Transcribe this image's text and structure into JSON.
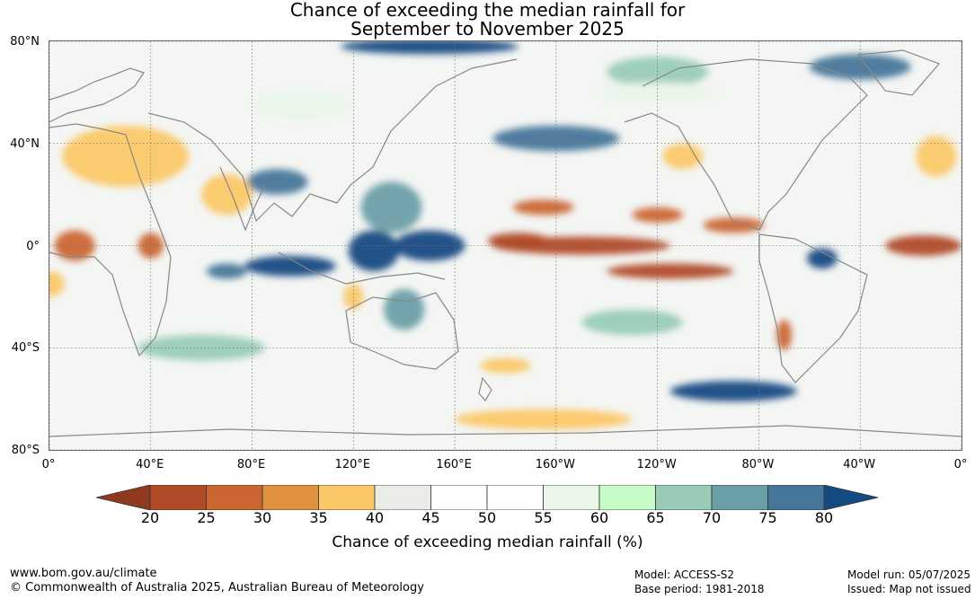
{
  "title": {
    "line1": "Chance of exceeding the median rainfall for",
    "line2": "September to November 2025"
  },
  "map": {
    "lat_labels": [
      {
        "lat": 80,
        "text": "80°N"
      },
      {
        "lat": 40,
        "text": "40°N"
      },
      {
        "lat": 0,
        "text": "0°"
      },
      {
        "lat": -40,
        "text": "40°S"
      },
      {
        "lat": -80,
        "text": "80°S"
      }
    ],
    "lon_labels": [
      {
        "lon": 0,
        "text": "0°"
      },
      {
        "lon": 40,
        "text": "40°E"
      },
      {
        "lon": 80,
        "text": "80°E"
      },
      {
        "lon": 120,
        "text": "120°E"
      },
      {
        "lon": 160,
        "text": "160°E"
      },
      {
        "lon": 200,
        "text": "160°W"
      },
      {
        "lon": 240,
        "text": "120°W"
      },
      {
        "lon": 280,
        "text": "80°W"
      },
      {
        "lon": 320,
        "text": "40°W"
      },
      {
        "lon": 360,
        "text": "0°"
      }
    ],
    "lon_range": [
      0,
      360
    ],
    "lat_range": [
      -80,
      80
    ],
    "gridlines": true,
    "regions": [
      {
        "lon": 150,
        "lat": 0,
        "rlon": 14,
        "rlat": 6,
        "pct": 80
      },
      {
        "lon": 128,
        "lat": -2,
        "rlon": 10,
        "rlat": 8,
        "pct": 80
      },
      {
        "lon": 95,
        "lat": -8,
        "rlon": 18,
        "rlat": 4,
        "pct": 80
      },
      {
        "lon": 70,
        "lat": -10,
        "rlon": 8,
        "rlat": 3,
        "pct": 75
      },
      {
        "lon": 135,
        "lat": 15,
        "rlon": 12,
        "rlat": 10,
        "pct": 70
      },
      {
        "lon": 90,
        "lat": 25,
        "rlon": 12,
        "rlat": 5,
        "pct": 75
      },
      {
        "lon": 200,
        "lat": 42,
        "rlon": 25,
        "rlat": 5,
        "pct": 75
      },
      {
        "lon": 150,
        "lat": 78,
        "rlon": 35,
        "rlat": 3,
        "pct": 80
      },
      {
        "lon": 270,
        "lat": -57,
        "rlon": 25,
        "rlat": 4,
        "pct": 80
      },
      {
        "lon": 305,
        "lat": -5,
        "rlon": 6,
        "rlat": 4,
        "pct": 80
      },
      {
        "lon": 140,
        "lat": -25,
        "rlon": 8,
        "rlat": 8,
        "pct": 70
      },
      {
        "lon": 320,
        "lat": 70,
        "rlon": 20,
        "rlat": 5,
        "pct": 75
      },
      {
        "lon": 230,
        "lat": -30,
        "rlon": 20,
        "rlat": 5,
        "pct": 65
      },
      {
        "lon": 240,
        "lat": 68,
        "rlon": 20,
        "rlat": 6,
        "pct": 65
      },
      {
        "lon": 60,
        "lat": -40,
        "rlon": 25,
        "rlat": 5,
        "pct": 65
      },
      {
        "lon": 210,
        "lat": 0,
        "rlon": 35,
        "rlat": 3.5,
        "pct": 20
      },
      {
        "lon": 245,
        "lat": -10,
        "rlon": 25,
        "rlat": 3,
        "pct": 20
      },
      {
        "lon": 185,
        "lat": 2,
        "rlon": 12,
        "rlat": 3,
        "pct": 20
      },
      {
        "lon": 345,
        "lat": 0,
        "rlon": 15,
        "rlat": 4,
        "pct": 20
      },
      {
        "lon": 10,
        "lat": 0,
        "rlon": 8,
        "rlat": 6,
        "pct": 25
      },
      {
        "lon": 40,
        "lat": 0,
        "rlon": 5,
        "rlat": 5,
        "pct": 25
      },
      {
        "lon": 195,
        "lat": 15,
        "rlon": 12,
        "rlat": 3,
        "pct": 25
      },
      {
        "lon": 240,
        "lat": 12,
        "rlon": 10,
        "rlat": 3,
        "pct": 25
      },
      {
        "lon": 270,
        "lat": 8,
        "rlon": 12,
        "rlat": 3,
        "pct": 25
      },
      {
        "lon": 290,
        "lat": -35,
        "rlon": 3,
        "rlat": 6,
        "pct": 25
      },
      {
        "lon": 30,
        "lat": 35,
        "rlon": 25,
        "rlat": 12,
        "pct": 35
      },
      {
        "lon": 70,
        "lat": 20,
        "rlon": 10,
        "rlat": 8,
        "pct": 35
      },
      {
        "lon": 250,
        "lat": 35,
        "rlon": 8,
        "rlat": 5,
        "pct": 35
      },
      {
        "lon": 195,
        "lat": -68,
        "rlon": 35,
        "rlat": 4,
        "pct": 35
      },
      {
        "lon": 180,
        "lat": -47,
        "rlon": 10,
        "rlat": 3,
        "pct": 35
      },
      {
        "lon": 120,
        "lat": -20,
        "rlon": 4,
        "rlat": 5,
        "pct": 35
      },
      {
        "lon": 350,
        "lat": 35,
        "rlon": 8,
        "rlat": 8,
        "pct": 35
      },
      {
        "lon": 0,
        "lat": -15,
        "rlon": 6,
        "rlat": 5,
        "pct": 35
      },
      {
        "lon": 240,
        "lat": 60,
        "rlon": 25,
        "rlat": 4,
        "pct": 55
      },
      {
        "lon": 100,
        "lat": 55,
        "rlon": 20,
        "rlat": 6,
        "pct": 55
      }
    ],
    "coast_color": "#888888"
  },
  "colorbar": {
    "ticks": [
      "20",
      "25",
      "30",
      "35",
      "40",
      "45",
      "50",
      "55",
      "60",
      "65",
      "70",
      "75",
      "80"
    ],
    "below_color": "#8f3a1f",
    "above_color": "#164a82",
    "colors": [
      "#b04a26",
      "#cb6531",
      "#e0913f",
      "#fbc868",
      "#ebebe7",
      "#ffffff",
      "#ffffff",
      "#eaf6ea",
      "#c6fcc6",
      "#99ccb6",
      "#6b9fa8",
      "#46769a"
    ],
    "label": "Chance of exceeding median rainfall (%)"
  },
  "footer": {
    "website": "www.bom.gov.au/climate",
    "copyright": "© Commonwealth of Australia 2025, Australian Bureau of Meteorology",
    "model": "Model: ACCESS-S2",
    "base_period": "Base period: 1981-2018",
    "model_run": "Model run: 05/07/2025",
    "issued": "Issued: Map not issued"
  }
}
